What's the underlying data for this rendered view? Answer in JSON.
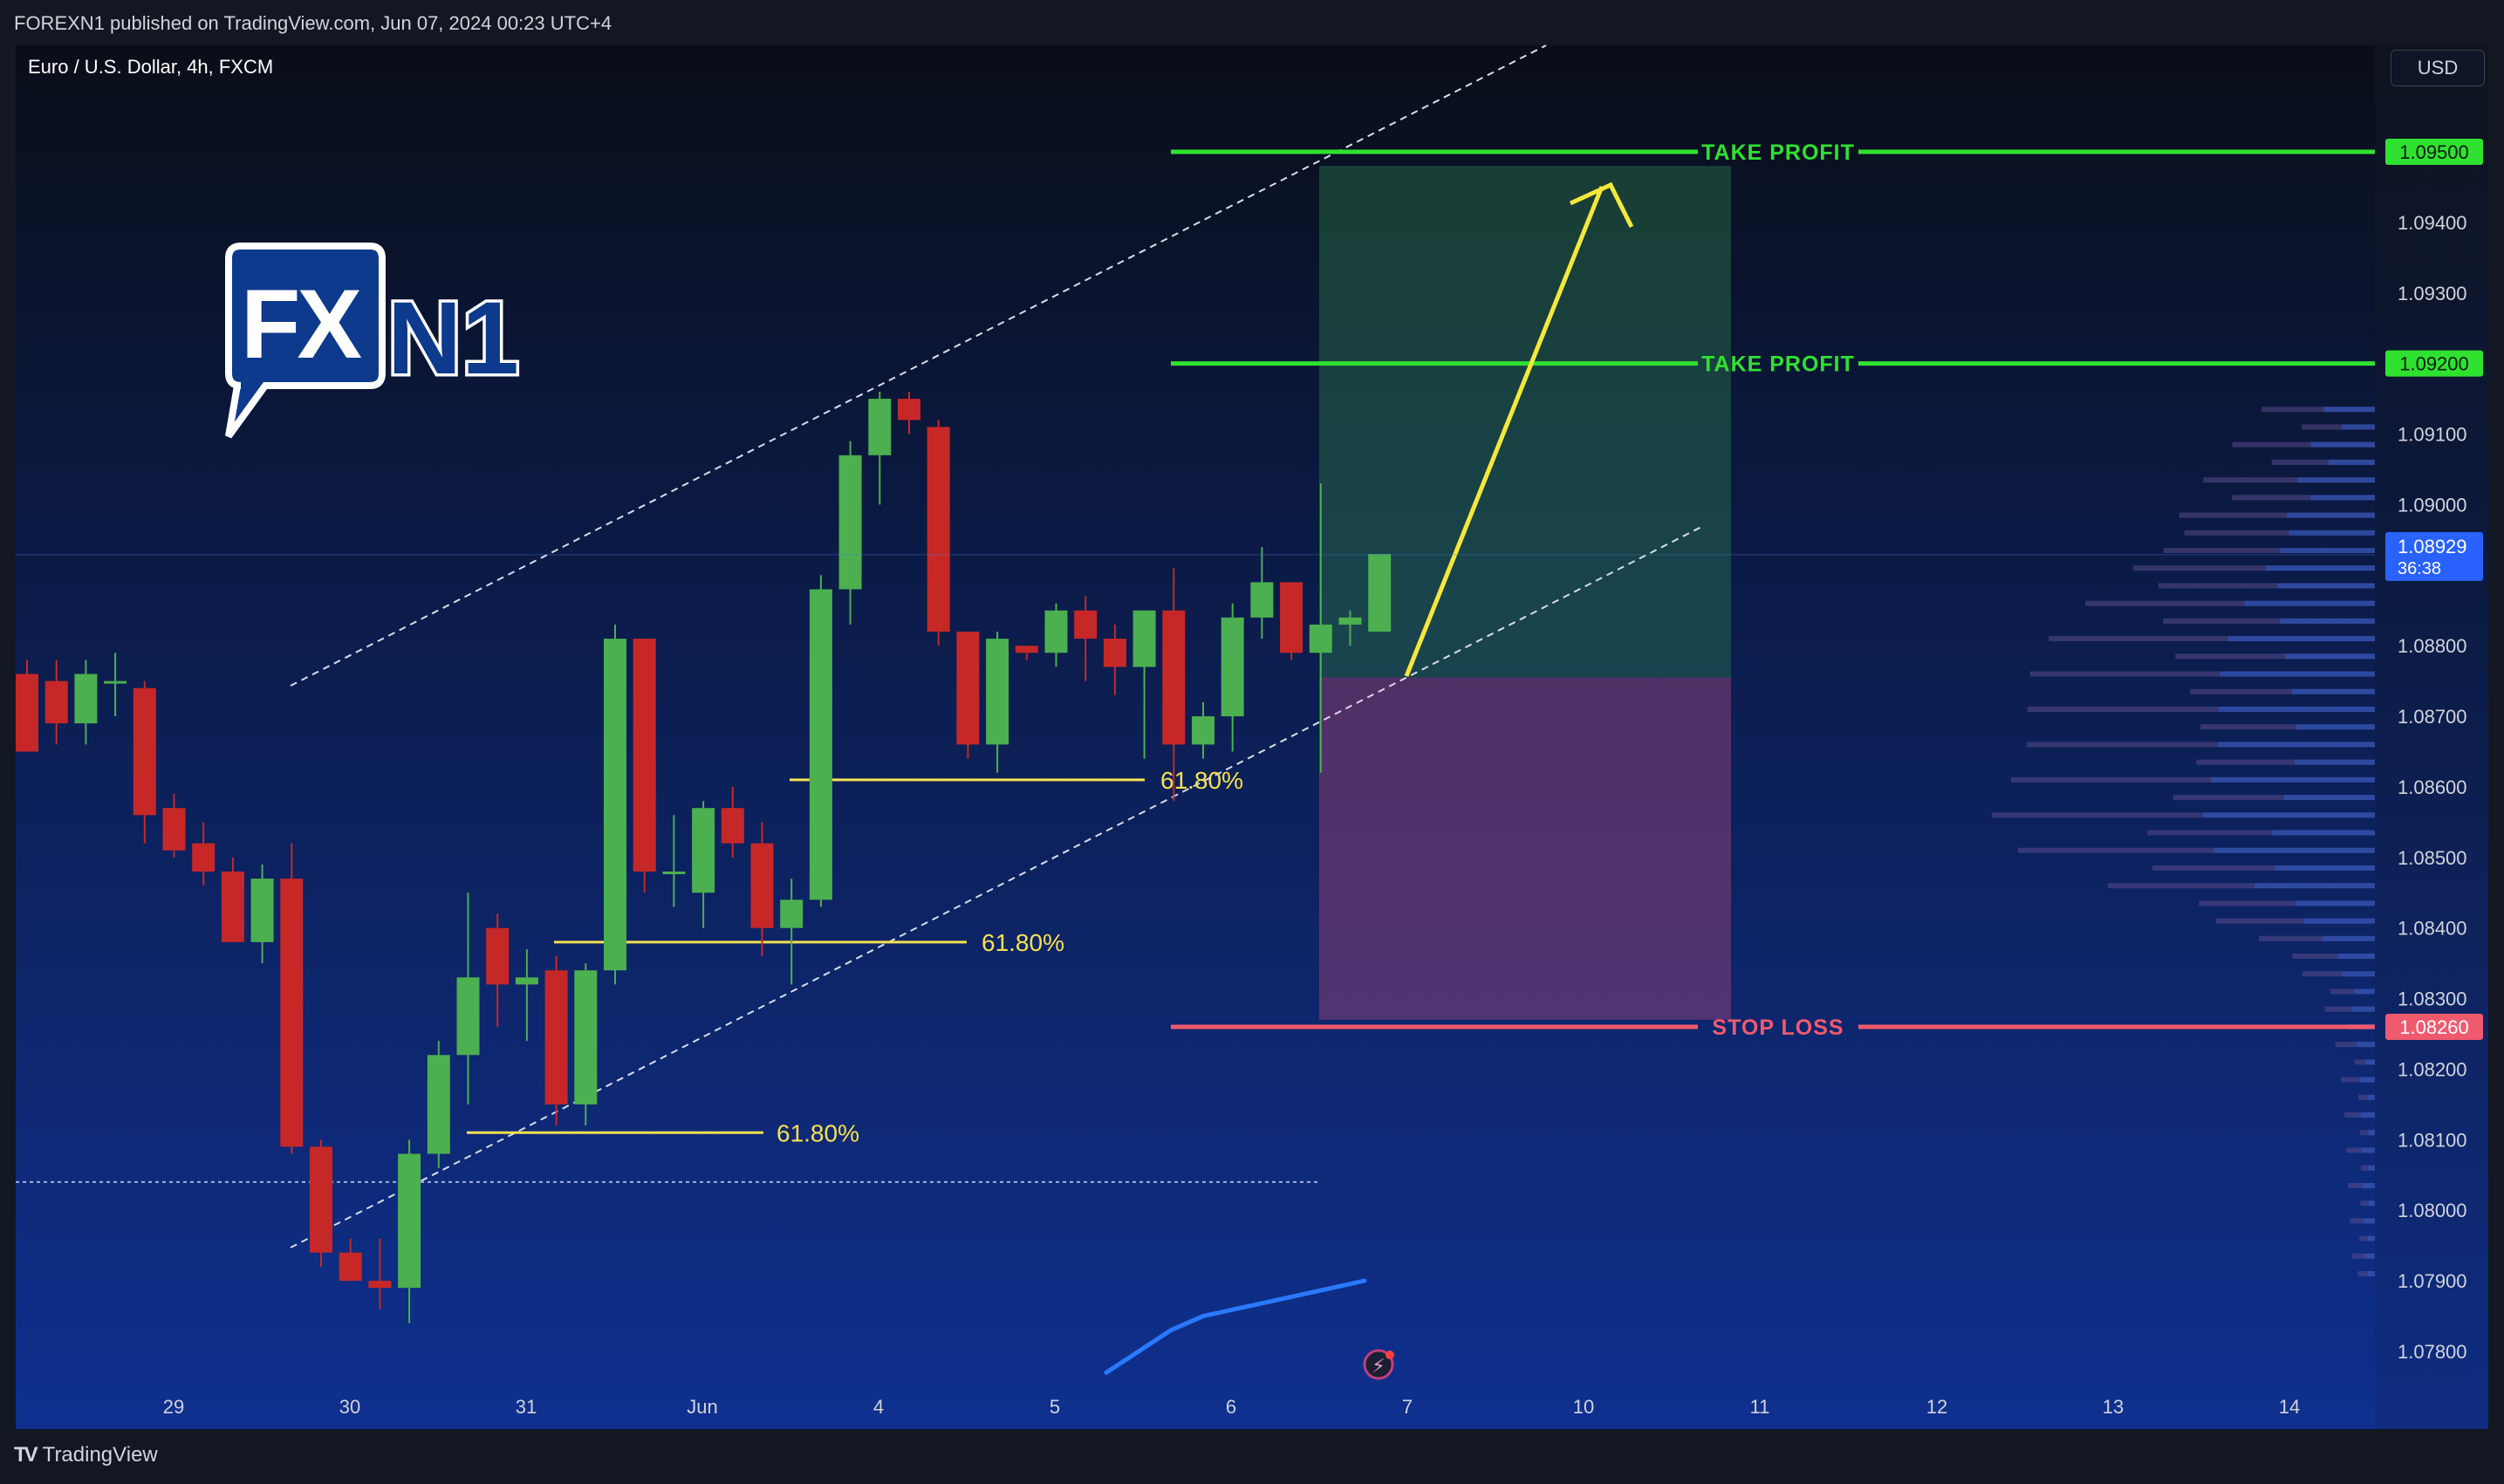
{
  "header": {
    "published": "FOREXN1 published on TradingView.com, Jun 07, 2024 00:23 UTC+4"
  },
  "symbol_label": "Euro / U.S. Dollar, 4h, FXCM",
  "currency_button": "USD",
  "footer": {
    "brand": "TradingView"
  },
  "logo": {
    "part1": "FX",
    "part2": "N1"
  },
  "colors": {
    "bull": "#4caf50",
    "bear": "#c62828",
    "take_profit": "#2fe22f",
    "stop_loss": "#f05a6e",
    "fib": "#f5e050",
    "arrow": "#f5e83a",
    "ma": "#2979ff",
    "bg_top": "#0b1020",
    "bg_bottom": "#0f2e8c"
  },
  "chart_data": {
    "type": "candlestick",
    "timeframe": "4h",
    "y_range": [
      1.0775,
      1.0965
    ],
    "price_ticks": [
      "1.09400",
      "1.09300",
      "1.09100",
      "1.09000",
      "1.08800",
      "1.08700",
      "1.08600",
      "1.08500",
      "1.08400",
      "1.08300",
      "1.08200",
      "1.08100",
      "1.08000",
      "1.07900",
      "1.07800"
    ],
    "x_ticks": [
      "29",
      "30",
      "31",
      "Jun",
      "4",
      "5",
      "6",
      "7",
      "10",
      "11",
      "12",
      "13",
      "14"
    ],
    "candles": [
      [
        1.0876,
        1.0878,
        1.0865,
        1.0865
      ],
      [
        1.0875,
        1.0878,
        1.0866,
        1.0869
      ],
      [
        1.0869,
        1.0878,
        1.0866,
        1.0876
      ],
      [
        1.0875,
        1.0879,
        1.087,
        1.0875
      ],
      [
        1.0874,
        1.0875,
        1.0852,
        1.0856
      ],
      [
        1.0857,
        1.0859,
        1.085,
        1.0851
      ],
      [
        1.0852,
        1.0855,
        1.0846,
        1.0848
      ],
      [
        1.0848,
        1.085,
        1.0838,
        1.0838
      ],
      [
        1.0838,
        1.0849,
        1.0835,
        1.0847
      ],
      [
        1.0847,
        1.0852,
        1.0808,
        1.0809
      ],
      [
        1.0809,
        1.081,
        1.0792,
        1.0794
      ],
      [
        1.0794,
        1.0796,
        1.079,
        1.079
      ],
      [
        1.079,
        1.0796,
        1.0786,
        1.0789
      ],
      [
        1.0789,
        1.081,
        1.0784,
        1.0808
      ],
      [
        1.0808,
        1.0824,
        1.0806,
        1.0822
      ],
      [
        1.0822,
        1.0845,
        1.0815,
        1.0833
      ],
      [
        1.084,
        1.0842,
        1.0826,
        1.0832
      ],
      [
        1.0832,
        1.0837,
        1.0824,
        1.0833
      ],
      [
        1.0834,
        1.0836,
        1.0812,
        1.0815
      ],
      [
        1.0815,
        1.0835,
        1.0812,
        1.0834
      ],
      [
        1.0834,
        1.0883,
        1.0832,
        1.0881
      ],
      [
        1.0881,
        1.0881,
        1.0845,
        1.0848
      ],
      [
        1.0848,
        1.0856,
        1.0843,
        1.0848
      ],
      [
        1.0845,
        1.0858,
        1.084,
        1.0857
      ],
      [
        1.0857,
        1.086,
        1.085,
        1.0852
      ],
      [
        1.0852,
        1.0855,
        1.0836,
        1.084
      ],
      [
        1.084,
        1.0847,
        1.0832,
        1.0844
      ],
      [
        1.0844,
        1.089,
        1.0843,
        1.0888
      ],
      [
        1.0888,
        1.0909,
        1.0883,
        1.0907
      ],
      [
        1.0907,
        1.0916,
        1.09,
        1.0915
      ],
      [
        1.0915,
        1.0916,
        1.091,
        1.0912
      ],
      [
        1.0911,
        1.0912,
        1.088,
        1.0882
      ],
      [
        1.0882,
        1.0882,
        1.0864,
        1.0866
      ],
      [
        1.0866,
        1.0882,
        1.0862,
        1.0881
      ],
      [
        1.088,
        1.088,
        1.0878,
        1.0879
      ],
      [
        1.0879,
        1.0886,
        1.0877,
        1.0885
      ],
      [
        1.0885,
        1.0887,
        1.0875,
        1.0881
      ],
      [
        1.0881,
        1.0883,
        1.0873,
        1.0877
      ],
      [
        1.0877,
        1.0885,
        1.0864,
        1.0885
      ],
      [
        1.0885,
        1.0891,
        1.0858,
        1.0866
      ],
      [
        1.0866,
        1.0872,
        1.0864,
        1.087
      ],
      [
        1.087,
        1.0886,
        1.0865,
        1.0884
      ],
      [
        1.0884,
        1.0894,
        1.0881,
        1.0889
      ],
      [
        1.0889,
        1.0889,
        1.0878,
        1.0879
      ],
      [
        1.0879,
        1.0903,
        1.0862,
        1.0883
      ],
      [
        1.0883,
        1.0885,
        1.088,
        1.0884
      ],
      [
        1.0882,
        1.0893,
        1.0882,
        1.0893
      ]
    ],
    "take_profit_levels": [
      {
        "label": "TAKE PROFIT",
        "price": "1.09500",
        "value": 1.095
      },
      {
        "label": "TAKE PROFIT",
        "price": "1.09200",
        "value": 1.092
      }
    ],
    "stop_loss": {
      "label": "STOP LOSS",
      "price": "1.08260",
      "value": 1.0826
    },
    "current_price": {
      "price": "1.08929",
      "countdown": "36:38",
      "value": 1.08929
    },
    "position": {
      "entry": 1.08755,
      "target": 1.0948,
      "stop": 1.0827
    },
    "fib_levels": [
      {
        "label": "61.80%",
        "value": 1.0861
      },
      {
        "label": "61.80%",
        "value": 1.0838
      },
      {
        "label": "61.80%",
        "value": 1.0811
      }
    ],
    "channel": {
      "upper": [
        [
          1.0875,
          1.0965
        ]
      ],
      "lower": [
        [
          1.0792,
          1.0879
        ]
      ]
    },
    "dotted_level": 1.0804,
    "moving_average": [
      1.0777,
      1.078,
      1.0783,
      1.0785,
      1.0786,
      1.0787,
      1.0788,
      1.0789,
      1.079
    ],
    "volume_profile_note": ""
  }
}
